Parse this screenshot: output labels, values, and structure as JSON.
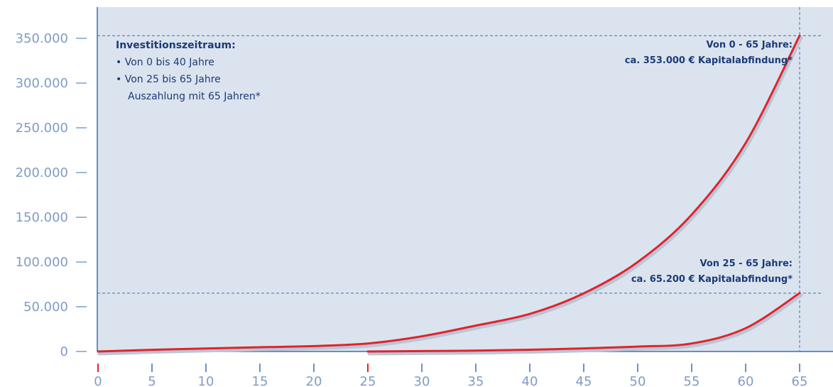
{
  "chart_data": {
    "type": "line",
    "xlim": [
      0,
      65
    ],
    "ylim": [
      0,
      360000
    ],
    "x_ticks": [
      "0",
      "5",
      "10",
      "15",
      "20",
      "25",
      "30",
      "35",
      "40",
      "45",
      "50",
      "55",
      "60",
      "65"
    ],
    "y_ticks": [
      "0",
      "50.000",
      "100.000",
      "150.000",
      "200.000",
      "250.000",
      "300.000",
      "350.000"
    ],
    "x_tick_values": [
      0,
      5,
      10,
      15,
      20,
      25,
      30,
      35,
      40,
      45,
      50,
      55,
      60,
      65
    ],
    "y_tick_values": [
      0,
      50000,
      100000,
      150000,
      200000,
      250000,
      300000,
      350000
    ],
    "grid": false,
    "series": [
      {
        "x": [
          0,
          5,
          10,
          15,
          20,
          25,
          30,
          35,
          40,
          45,
          50,
          55,
          60,
          65
        ],
        "y": [
          0,
          1900,
          3400,
          4800,
          6000,
          9000,
          17000,
          29000,
          42000,
          65000,
          100000,
          153000,
          233000,
          353000
        ]
      },
      {
        "x": [
          25,
          30,
          35,
          40,
          45,
          50,
          55,
          60,
          65
        ],
        "y": [
          0,
          500,
          1000,
          2000,
          3500,
          5500,
          9000,
          26000,
          65200
        ]
      }
    ],
    "reference_lines": [
      {
        "type": "vertical",
        "x": 65
      },
      {
        "type": "horizontal",
        "y": 353000
      },
      {
        "type": "horizontal",
        "y": 65200
      }
    ],
    "legend": {
      "title": "Investitionszeitraum:",
      "items": [
        "• Von 0 bis 40 Jahre",
        "• Von 25 bis 65 Jahre",
        "Auszahlung mit 65 Jahren*"
      ]
    },
    "annotations": [
      {
        "line1": "Von 0 - 65 Jahre:",
        "line2": "ca. 353.000 € Kapitalabfindung*"
      },
      {
        "line1": "Von 25 - 65 Jahre:",
        "line2": "ca. 65.200 € Kapitalabfindung*"
      }
    ]
  },
  "colors": {
    "background": "#dbe4ee",
    "axis": "#3a6fb5",
    "series": "#e2232b",
    "tick_label": "#7f9cc9",
    "text": "#1c3b78"
  }
}
